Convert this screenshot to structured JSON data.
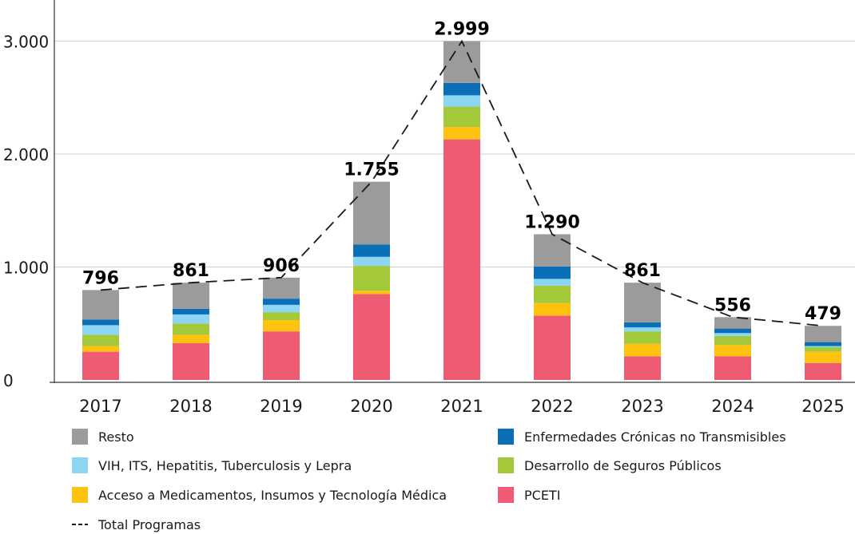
{
  "chart_data": {
    "type": "bar",
    "stacked": true,
    "title": "",
    "xlabel": "",
    "ylabel": "",
    "ylim": [
      0,
      3000
    ],
    "yticks": [
      0,
      1000,
      2000,
      3000
    ],
    "ytick_labels": [
      "0",
      "1.000",
      "2.000",
      "3.000"
    ],
    "grid": "horizontal",
    "legend_position": "bottom",
    "categories": [
      "2017",
      "2018",
      "2019",
      "2020",
      "2021",
      "2022",
      "2023",
      "2024",
      "2025"
    ],
    "series": [
      {
        "name": "PCETI",
        "color": "#ef5b72",
        "values": [
          250,
          325,
          430,
          760,
          2130,
          570,
          210,
          210,
          150
        ]
      },
      {
        "name": "Acceso a Medicamentos, Insumos y Tecnología Médica",
        "color": "#ffc20e",
        "values": [
          50,
          75,
          100,
          30,
          110,
          110,
          110,
          100,
          100
        ]
      },
      {
        "name": "Desarrollo de Seguros Públicos",
        "color": "#a3c93a",
        "values": [
          100,
          100,
          70,
          220,
          180,
          155,
          110,
          80,
          40
        ]
      },
      {
        "name": "VIH, ITS, Hepatitis, Tuberculosis y Lepra",
        "color": "#8cd5f3",
        "values": [
          85,
          80,
          65,
          80,
          100,
          60,
          35,
          25,
          10
        ]
      },
      {
        "name": "Enfermedades Crónicas no Transmisibles",
        "color": "#0b6fb8",
        "values": [
          50,
          50,
          55,
          110,
          110,
          110,
          45,
          40,
          35
        ]
      },
      {
        "name": "Resto",
        "color": "#9b9b9b",
        "values": [
          261,
          231,
          186,
          555,
          369,
          285,
          351,
          101,
          144
        ]
      }
    ],
    "totals": {
      "name": "Total Programas",
      "values": [
        796,
        861,
        906,
        1755,
        2999,
        1290,
        861,
        556,
        479
      ],
      "labels": [
        "796",
        "861",
        "906",
        "1.755",
        "2.999",
        "1.290",
        "861",
        "556",
        "479"
      ]
    },
    "legend": [
      {
        "label": "Resto",
        "color": "#9b9b9b",
        "kind": "box"
      },
      {
        "label": "Enfermedades Crónicas no Transmisibles",
        "color": "#0b6fb8",
        "kind": "box"
      },
      {
        "label": "VIH, ITS, Hepatitis, Tuberculosis y Lepra",
        "color": "#8cd5f3",
        "kind": "box"
      },
      {
        "label": "Desarrollo de Seguros Públicos",
        "color": "#a3c93a",
        "kind": "box"
      },
      {
        "label": "Acceso a Medicamentos, Insumos y Tecnología Médica",
        "color": "#ffc20e",
        "kind": "box"
      },
      {
        "label": "PCETI",
        "color": "#ef5b72",
        "kind": "box"
      },
      {
        "label": "Total Programas",
        "color": "#1a1a1a",
        "kind": "dash"
      }
    ]
  }
}
